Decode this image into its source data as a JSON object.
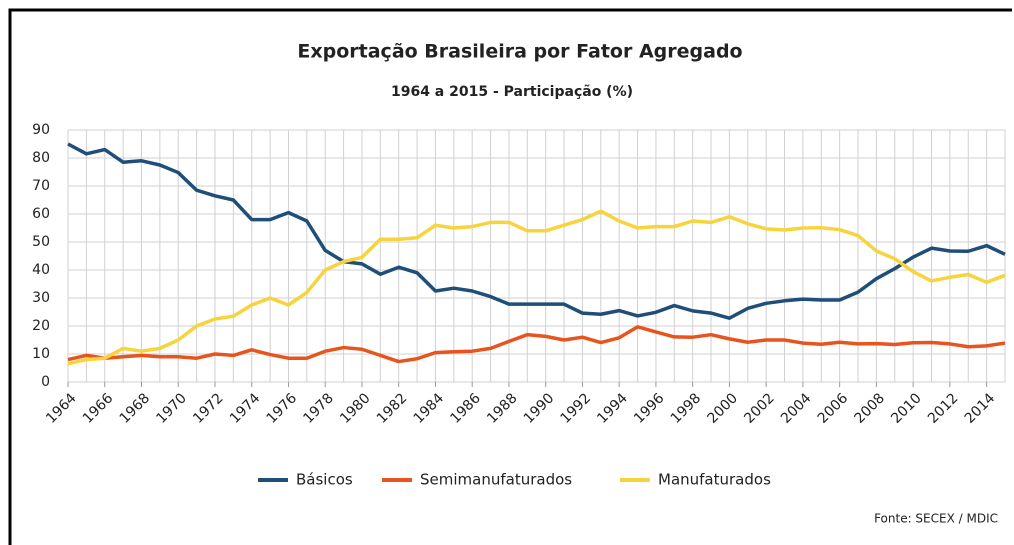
{
  "chart_data": {
    "type": "line",
    "title": "Exportação Brasileira por Fator Agregado",
    "subtitle": "1964 a 2015 - Participação (%)",
    "source": "Fonte: SECEX / MDIC",
    "x": [
      1964,
      1965,
      1966,
      1967,
      1968,
      1969,
      1970,
      1971,
      1972,
      1973,
      1974,
      1975,
      1976,
      1977,
      1978,
      1979,
      1980,
      1981,
      1982,
      1983,
      1984,
      1985,
      1986,
      1987,
      1988,
      1989,
      1990,
      1991,
      1992,
      1993,
      1994,
      1995,
      1996,
      1997,
      1998,
      1999,
      2000,
      2001,
      2002,
      2003,
      2004,
      2005,
      2006,
      2007,
      2008,
      2009,
      2010,
      2011,
      2012,
      2013,
      2014,
      2015
    ],
    "series": [
      {
        "name": "Básicos",
        "color": "#1f4e79",
        "values": [
          85,
          81.5,
          83,
          78.5,
          79,
          77.5,
          74.8,
          68.5,
          66.5,
          65,
          58,
          58,
          60.5,
          57.5,
          47,
          43,
          42.2,
          38.5,
          41,
          39,
          32.5,
          33.5,
          32.5,
          30.5,
          27.8,
          27.8,
          27.8,
          27.8,
          24.6,
          24.2,
          25.5,
          23.6,
          24.9,
          27.3,
          25.4,
          24.6,
          22.8,
          26.3,
          28.1,
          29,
          29.6,
          29.3,
          29.3,
          32.1,
          36.9,
          40.5,
          44.6,
          47.8,
          46.8,
          46.7,
          48.7,
          45.6
        ]
      },
      {
        "name": "Semimanufaturados",
        "color": "#e8541e",
        "values": [
          8,
          9.5,
          8.5,
          9,
          9.5,
          9,
          9,
          8.5,
          10,
          9.5,
          11.5,
          9.8,
          8.5,
          8.5,
          11,
          12.3,
          11.7,
          9.5,
          7.3,
          8.3,
          10.5,
          10.8,
          11,
          12,
          14.5,
          16.9,
          16.3,
          15,
          16,
          14.1,
          15.8,
          19.7,
          17.9,
          16.1,
          16,
          16.9,
          15.4,
          14.2,
          15,
          15,
          13.9,
          13.5,
          14.2,
          13.6,
          13.7,
          13.4,
          14,
          14.1,
          13.6,
          12.6,
          12.9,
          13.9
        ]
      },
      {
        "name": "Manufaturados",
        "color": "#f7d33c",
        "values": [
          6.5,
          8,
          8.5,
          12,
          11,
          12,
          15,
          20,
          22.5,
          23.5,
          27.5,
          30,
          27.5,
          32,
          40,
          43,
          44.5,
          51,
          51,
          51.5,
          56,
          55,
          55.5,
          57,
          57,
          54,
          54,
          56,
          58,
          61,
          57.5,
          55,
          55.5,
          55.5,
          57.5,
          57,
          59,
          56.5,
          54.7,
          54.3,
          55,
          55.1,
          54.4,
          52.3,
          46.8,
          44,
          39.4,
          36.1,
          37.4,
          38.4,
          35.6,
          38.1
        ]
      }
    ],
    "xlim": [
      1964,
      2015
    ],
    "xticks": [
      1964,
      1966,
      1968,
      1970,
      1972,
      1974,
      1976,
      1978,
      1980,
      1982,
      1984,
      1986,
      1988,
      1990,
      1992,
      1994,
      1996,
      1998,
      2000,
      2002,
      2004,
      2006,
      2008,
      2010,
      2012,
      2014
    ],
    "ylim": [
      0,
      90
    ],
    "yticks": [
      0,
      10,
      20,
      30,
      40,
      50,
      60,
      70,
      80,
      90
    ],
    "grid": true
  }
}
